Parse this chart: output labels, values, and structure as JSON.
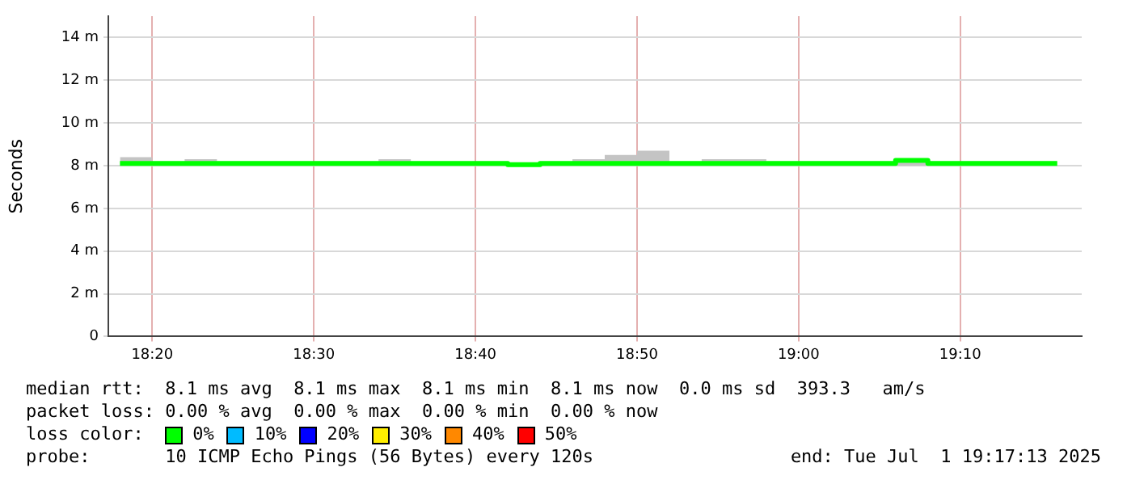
{
  "chart_data": {
    "type": "step",
    "ylabel": "Seconds",
    "x": [
      18.3,
      18.3333,
      18.3667,
      18.4,
      18.4333,
      18.4667,
      18.5,
      18.5333,
      18.5667,
      18.6,
      18.6333,
      18.6667,
      18.7,
      18.7333,
      18.7667,
      18.8,
      18.8333,
      18.8667,
      18.9,
      18.9333,
      18.9667,
      19.0,
      19.0333,
      19.0667,
      19.1,
      19.1333,
      19.1667,
      19.2,
      19.2333,
      19.2667
    ],
    "series": [
      {
        "color": "#00ff00",
        "values": [
          8.1,
          8.1,
          8.1,
          8.1,
          8.1,
          8.1,
          8.1,
          8.1,
          8.1,
          8.1,
          8.1,
          8.1,
          8.05,
          8.1,
          8.1,
          8.1,
          8.1,
          8.1,
          8.1,
          8.1,
          8.1,
          8.1,
          8.1,
          8.1,
          8.25,
          8.1,
          8.1,
          8.1,
          8.1,
          8.1
        ],
        "lower": [
          8.0,
          8.0,
          8.0,
          8.0,
          8.0,
          8.0,
          8.0,
          8.0,
          8.0,
          8.0,
          8.0,
          8.0,
          8.0,
          8.0,
          8.0,
          8.0,
          8.0,
          8.0,
          8.0,
          8.0,
          8.0,
          8.0,
          8.0,
          8.0,
          8.0,
          8.0,
          8.0,
          8.0,
          8.0,
          8.0
        ],
        "upper": [
          8.4,
          8.2,
          8.3,
          8.2,
          8.2,
          8.2,
          8.2,
          8.2,
          8.3,
          8.2,
          8.2,
          8.2,
          8.1,
          8.2,
          8.3,
          8.5,
          8.7,
          8.2,
          8.3,
          8.3,
          8.2,
          8.2,
          8.2,
          8.2,
          8.3,
          8.2,
          8.2,
          8.2,
          8.2,
          8.2
        ]
      }
    ],
    "xlim": [
      18.288,
      19.292
    ],
    "xticks": [
      {
        "value": 18.3333,
        "label": "18:20"
      },
      {
        "value": 18.5,
        "label": "18:30"
      },
      {
        "value": 18.6667,
        "label": "18:40"
      },
      {
        "value": 18.8333,
        "label": "18:50"
      },
      {
        "value": 19.0,
        "label": "19:00"
      },
      {
        "value": 19.1667,
        "label": "19:10"
      }
    ],
    "ylim": [
      0,
      15
    ],
    "yticks": [
      0,
      {
        "value": 2,
        "label": "2 m"
      },
      {
        "value": 4,
        "label": "4 m"
      },
      {
        "value": 6,
        "label": "6 m"
      },
      {
        "value": 8,
        "label": "8 m"
      },
      {
        "value": 10,
        "label": "10 m"
      },
      {
        "value": 12,
        "label": "12 m"
      },
      {
        "value": 14,
        "label": "14 m"
      }
    ],
    "grid": true,
    "legend": false,
    "annotations": [
      "median rtt:  8.1 ms avg  8.1 ms max  8.1 ms min  8.1 ms now  0.0 ms sd  393.3   am/s",
      "packet loss: 0.00 % avg  0.00 % max  0.00 % min  0.00 % now",
      "loss color:",
      "0%",
      "10%",
      "20%",
      "30%",
      "40%",
      "50%",
      "probe:       10 ICMP Echo Pings (56 Bytes) every 120s",
      "end: Tue Jul  1 19:17:13 2025"
    ]
  }
}
